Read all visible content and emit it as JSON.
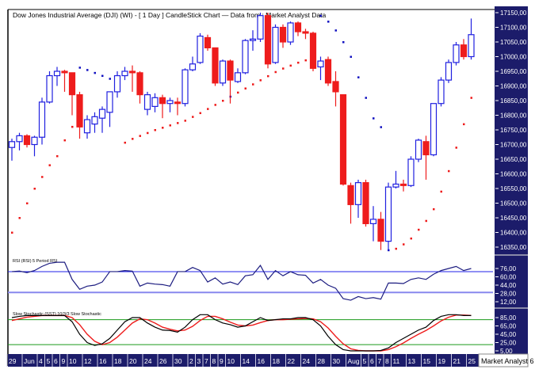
{
  "chart_data": {
    "type": "candlestick",
    "title": "Dow Jones Industrial Average (DJI) (WI) -  [ 1 Day ] CandleStick Chart — Data from : Market Analyst Data",
    "footer_label": "Market Analyst 6",
    "colors": {
      "up": "#2020e0",
      "down": "#ee1c1c",
      "sar_up": "#ee1c1c",
      "sar_down": "#1010c0",
      "axis_bg": "#1c1c6a",
      "rsi": "#1c1c80",
      "rsi_level": "#2020e8",
      "stoch_k": "#000000",
      "stoch_d": "#ee1c1c",
      "stoch_level": "#1a9a1a"
    },
    "price_axis": {
      "min": 16350,
      "max": 17150,
      "ticks": [
        "17150,00",
        "17100,00",
        "17050,00",
        "17000,00",
        "16950,00",
        "16900,00",
        "16850,00",
        "16800,00",
        "16750,00",
        "16700,00",
        "16650,00",
        "16600,00",
        "16550,00",
        "16500,00",
        "16450,00",
        "16400,00",
        "16350,00"
      ]
    },
    "ohlc": [
      [
        16690,
        16720,
        16645,
        16710
      ],
      [
        16710,
        16740,
        16680,
        16730
      ],
      [
        16730,
        16735,
        16690,
        16700
      ],
      [
        16700,
        16730,
        16660,
        16725
      ],
      [
        16725,
        16860,
        16700,
        16845
      ],
      [
        16845,
        16950,
        16840,
        16935
      ],
      [
        16935,
        16965,
        16900,
        16950
      ],
      [
        16950,
        16955,
        16880,
        16945
      ],
      [
        16945,
        16945,
        16800,
        16870
      ],
      [
        16870,
        16880,
        16720,
        16760
      ],
      [
        16740,
        16800,
        16720,
        16785
      ],
      [
        16770,
        16810,
        16740,
        16795
      ],
      [
        16790,
        16830,
        16740,
        16820
      ],
      [
        16810,
        16880,
        16760,
        16880
      ],
      [
        16880,
        16950,
        16860,
        16935
      ],
      [
        16935,
        16965,
        16920,
        16950
      ],
      [
        16950,
        16970,
        16880,
        16945
      ],
      [
        16945,
        16950,
        16840,
        16870
      ],
      [
        16820,
        16880,
        16800,
        16870
      ],
      [
        16830,
        16875,
        16810,
        16860
      ],
      [
        16860,
        16870,
        16790,
        16840
      ],
      [
        16840,
        16860,
        16810,
        16850
      ],
      [
        16845,
        16860,
        16800,
        16840
      ],
      [
        16840,
        16960,
        16830,
        16955
      ],
      [
        16955,
        17000,
        16950,
        16975
      ],
      [
        16980,
        17080,
        16975,
        17070
      ],
      [
        17065,
        17075,
        17020,
        17030
      ],
      [
        17030,
        17030,
        16900,
        16910
      ],
      [
        16910,
        16990,
        16900,
        16985
      ],
      [
        16985,
        16990,
        16840,
        16920
      ],
      [
        16915,
        16960,
        16910,
        16945
      ],
      [
        16945,
        17060,
        16940,
        17055
      ],
      [
        17055,
        17090,
        17020,
        17060
      ],
      [
        17060,
        17150,
        17050,
        17140
      ],
      [
        17140,
        17150,
        16960,
        16975
      ],
      [
        16980,
        17110,
        16975,
        17100
      ],
      [
        17100,
        17110,
        17030,
        17050
      ],
      [
        17050,
        17120,
        17040,
        17115
      ],
      [
        17115,
        17120,
        17070,
        17085
      ],
      [
        17085,
        17095,
        17060,
        17080
      ],
      [
        17080,
        17085,
        16950,
        16960
      ],
      [
        16965,
        17000,
        16920,
        16985
      ],
      [
        16990,
        17000,
        16900,
        16910
      ],
      [
        16915,
        16950,
        16830,
        16880
      ],
      [
        16870,
        16870,
        16560,
        16565
      ],
      [
        16560,
        16570,
        16430,
        16495
      ],
      [
        16495,
        16580,
        16450,
        16570
      ],
      [
        16570,
        16580,
        16420,
        16430
      ],
      [
        16430,
        16490,
        16370,
        16445
      ],
      [
        16445,
        16470,
        16340,
        16370
      ],
      [
        16370,
        16570,
        16340,
        16555
      ],
      [
        16555,
        16610,
        16550,
        16565
      ],
      [
        16565,
        16580,
        16540,
        16560
      ],
      [
        16560,
        16660,
        16555,
        16650
      ],
      [
        16650,
        16720,
        16640,
        16715
      ],
      [
        16710,
        16730,
        16580,
        16665
      ],
      [
        16665,
        16840,
        16660,
        16840
      ],
      [
        16840,
        16930,
        16830,
        16920
      ],
      [
        16920,
        16990,
        16910,
        16980
      ],
      [
        16980,
        17050,
        16970,
        17040
      ],
      [
        17040,
        17060,
        16990,
        17000
      ],
      [
        17000,
        17130,
        16990,
        17075
      ]
    ],
    "sar": [
      16400,
      16450,
      16500,
      16550,
      16590,
      16630,
      16661,
      16715,
      16761,
      16963,
      16955,
      16945,
      16935,
      16925,
      16915,
      16707,
      16720,
      16730,
      16740,
      16750,
      16758,
      16766,
      16774,
      16782,
      16795,
      16808,
      16822,
      16836,
      16850,
      16864,
      16878,
      16892,
      16906,
      16920,
      16934,
      16948,
      16960,
      16970,
      16980,
      16988,
      16995,
      17140,
      17120,
      17090,
      17050,
      17000,
      16930,
      16860,
      16790,
      16760,
      16340,
      16345,
      16360,
      16380,
      16410,
      16440,
      16480,
      16540,
      16610,
      16690,
      16770,
      16860
    ],
    "sar_side": "uuuuuuuuuddddddu uuuuuuuuuuuuuuuuuuuuuuuuudddddddddduuuuuuuuuuuu",
    "rsi": {
      "label": "RSI (RSI) 5 Period RSI",
      "ticks": [
        "76,00",
        "60,00",
        "44,00",
        "28,00",
        "12,00"
      ],
      "levels": [
        70,
        30
      ],
      "values": [
        70,
        71,
        68,
        72,
        80,
        86,
        88,
        88,
        55,
        36,
        42,
        44,
        50,
        70,
        70,
        72,
        71,
        42,
        48,
        46,
        45,
        42,
        70,
        70,
        78,
        72,
        50,
        58,
        46,
        50,
        45,
        62,
        64,
        82,
        55,
        72,
        62,
        70,
        64,
        63,
        48,
        55,
        44,
        38,
        18,
        15,
        22,
        18,
        20,
        17,
        48,
        48,
        47,
        55,
        58,
        55,
        65,
        72,
        76,
        80,
        72,
        76
      ]
    },
    "stochastic": {
      "label": "Slow Stochastic (SST) 10/3/3 Slow Stochastic",
      "ticks": [
        "85,00",
        "65,00",
        "45,00",
        "25,00",
        "5,00"
      ],
      "levels": [
        80,
        20
      ],
      "k": [
        85,
        88,
        90,
        90,
        90,
        90,
        90,
        90,
        75,
        45,
        25,
        18,
        22,
        35,
        55,
        75,
        85,
        85,
        72,
        62,
        55,
        54,
        50,
        62,
        80,
        92,
        92,
        80,
        72,
        68,
        62,
        65,
        75,
        85,
        78,
        80,
        82,
        82,
        85,
        85,
        80,
        65,
        40,
        20,
        8,
        5,
        5,
        5,
        5,
        6,
        12,
        25,
        35,
        45,
        55,
        62,
        78,
        88,
        92,
        92,
        90,
        90
      ],
      "d": [
        78,
        82,
        86,
        88,
        90,
        90,
        90,
        90,
        85,
        68,
        45,
        28,
        20,
        25,
        38,
        55,
        72,
        82,
        80,
        72,
        62,
        57,
        53,
        55,
        64,
        78,
        88,
        88,
        82,
        74,
        67,
        65,
        67,
        73,
        78,
        80,
        80,
        81,
        82,
        83,
        82,
        75,
        60,
        40,
        22,
        10,
        6,
        5,
        5,
        5,
        8,
        15,
        24,
        35,
        45,
        54,
        65,
        77,
        86,
        91,
        91,
        90
      ]
    },
    "date_labels": [
      {
        "i": 0,
        "t": "29"
      },
      {
        "i": 2,
        "t": "Jun"
      },
      {
        "i": 4,
        "t": "4"
      },
      {
        "i": 5,
        "t": "5"
      },
      {
        "i": 6,
        "t": "6"
      },
      {
        "i": 7,
        "t": "9"
      },
      {
        "i": 8,
        "t": "10"
      },
      {
        "i": 10,
        "t": "12"
      },
      {
        "i": 12,
        "t": "16"
      },
      {
        "i": 14,
        "t": "18"
      },
      {
        "i": 16,
        "t": "20"
      },
      {
        "i": 18,
        "t": "24"
      },
      {
        "i": 20,
        "t": "26"
      },
      {
        "i": 22,
        "t": "30"
      },
      {
        "i": 24,
        "t": "2"
      },
      {
        "i": 25,
        "t": "3"
      },
      {
        "i": 26,
        "t": "7"
      },
      {
        "i": 27,
        "t": "8"
      },
      {
        "i": 28,
        "t": "9"
      },
      {
        "i": 29,
        "t": "10"
      },
      {
        "i": 31,
        "t": "14"
      },
      {
        "i": 33,
        "t": "16"
      },
      {
        "i": 35,
        "t": "18"
      },
      {
        "i": 37,
        "t": "22"
      },
      {
        "i": 39,
        "t": "24"
      },
      {
        "i": 41,
        "t": "28"
      },
      {
        "i": 43,
        "t": "30"
      },
      {
        "i": 45,
        "t": "Aug"
      },
      {
        "i": 47,
        "t": "5"
      },
      {
        "i": 48,
        "t": "6"
      },
      {
        "i": 49,
        "t": "7"
      },
      {
        "i": 50,
        "t": "8"
      },
      {
        "i": 51,
        "t": "11"
      },
      {
        "i": 53,
        "t": "13"
      },
      {
        "i": 55,
        "t": "15"
      },
      {
        "i": 57,
        "t": "19"
      },
      {
        "i": 59,
        "t": "21"
      },
      {
        "i": 61,
        "t": "25"
      }
    ]
  }
}
